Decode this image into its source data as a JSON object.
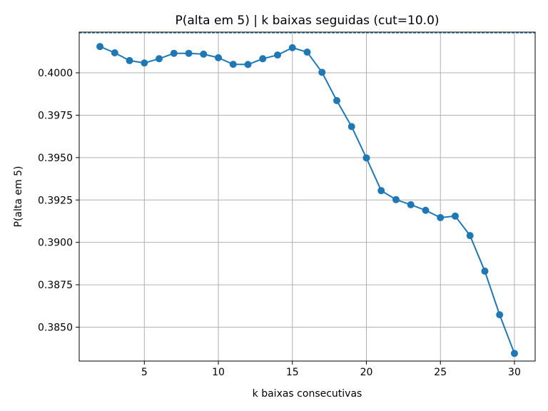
{
  "chart_data": {
    "type": "line",
    "title": "P(alta em 5) | k baixas seguidas  (cut=10.0)",
    "xlabel": "k baixas consecutivas",
    "ylabel": "P(alta em 5)",
    "xlim": [
      0.6,
      31.4
    ],
    "ylim": [
      0.383,
      0.4024
    ],
    "xticks": [
      5,
      10,
      15,
      20,
      25,
      30
    ],
    "xtick_labels": [
      "5",
      "10",
      "15",
      "20",
      "25",
      "30"
    ],
    "yticks": [
      0.385,
      0.3875,
      0.39,
      0.3925,
      0.395,
      0.3975,
      0.4
    ],
    "ytick_labels": [
      "0.3850",
      "0.3875",
      "0.3900",
      "0.3925",
      "0.3950",
      "0.3975",
      "0.4000"
    ],
    "grid": true,
    "reference_line": {
      "y": 0.40235,
      "style": "dashed"
    },
    "series": [
      {
        "color": "#1f77b4",
        "marker": "circle",
        "x": [
          2,
          3,
          4,
          5,
          6,
          7,
          8,
          9,
          10,
          11,
          12,
          13,
          14,
          15,
          16,
          17,
          18,
          19,
          20,
          21,
          22,
          23,
          24,
          25,
          26,
          27,
          28,
          29,
          30
        ],
        "y": [
          0.40155,
          0.40118,
          0.40072,
          0.40058,
          0.40083,
          0.40115,
          0.40115,
          0.4011,
          0.40089,
          0.4005,
          0.40049,
          0.40083,
          0.40105,
          0.40148,
          0.40122,
          0.40003,
          0.39836,
          0.39683,
          0.39498,
          0.39305,
          0.39252,
          0.39222,
          0.39189,
          0.39146,
          0.39155,
          0.3904,
          0.3883,
          0.38573,
          0.38345
        ]
      }
    ]
  }
}
